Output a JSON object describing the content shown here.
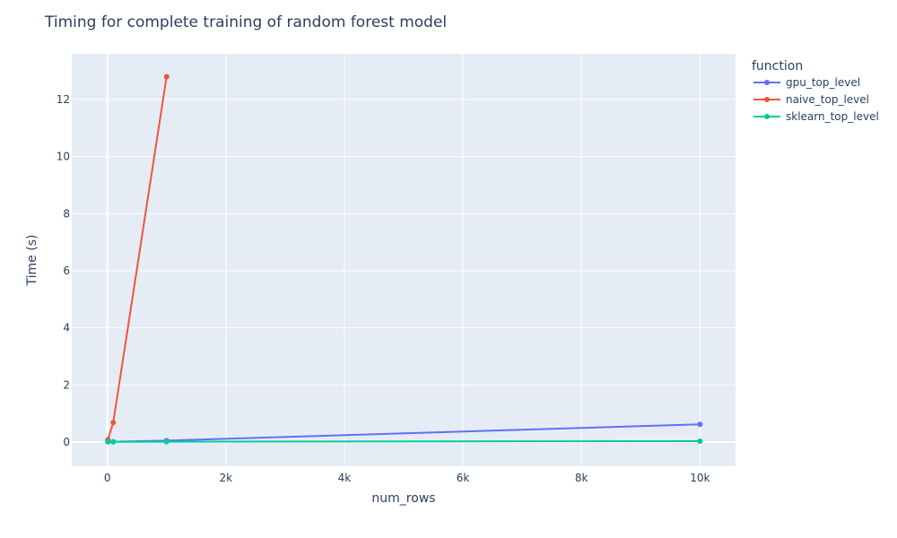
{
  "chart_data": {
    "type": "line",
    "title": "Timing for complete training of random forest model",
    "xlabel": "num_rows",
    "ylabel": "Time (s)",
    "xlim": [
      -600,
      10600
    ],
    "ylim": [
      -0.85,
      13.6
    ],
    "x_ticks": [
      0,
      2000,
      4000,
      6000,
      8000,
      10000
    ],
    "x_tick_labels": [
      "0",
      "2k",
      "4k",
      "6k",
      "8k",
      "10k"
    ],
    "y_ticks": [
      0,
      2,
      4,
      6,
      8,
      10,
      12
    ],
    "y_tick_labels": [
      "0",
      "2",
      "4",
      "6",
      "8",
      "10",
      "12"
    ],
    "grid": true,
    "legend_title": "function",
    "legend_position": "right",
    "series": [
      {
        "name": "gpu_top_level",
        "color": "#636efa",
        "x": [
          10,
          100,
          1000,
          10000
        ],
        "y": [
          0.01,
          0.01,
          0.05,
          0.62
        ]
      },
      {
        "name": "naive_top_level",
        "color": "#ef553b",
        "x": [
          10,
          100,
          1000
        ],
        "y": [
          0.08,
          0.68,
          12.8
        ]
      },
      {
        "name": "sklearn_top_level",
        "color": "#00cc96",
        "x": [
          10,
          100,
          1000,
          10000
        ],
        "y": [
          0.005,
          0.005,
          0.01,
          0.03
        ]
      }
    ]
  }
}
